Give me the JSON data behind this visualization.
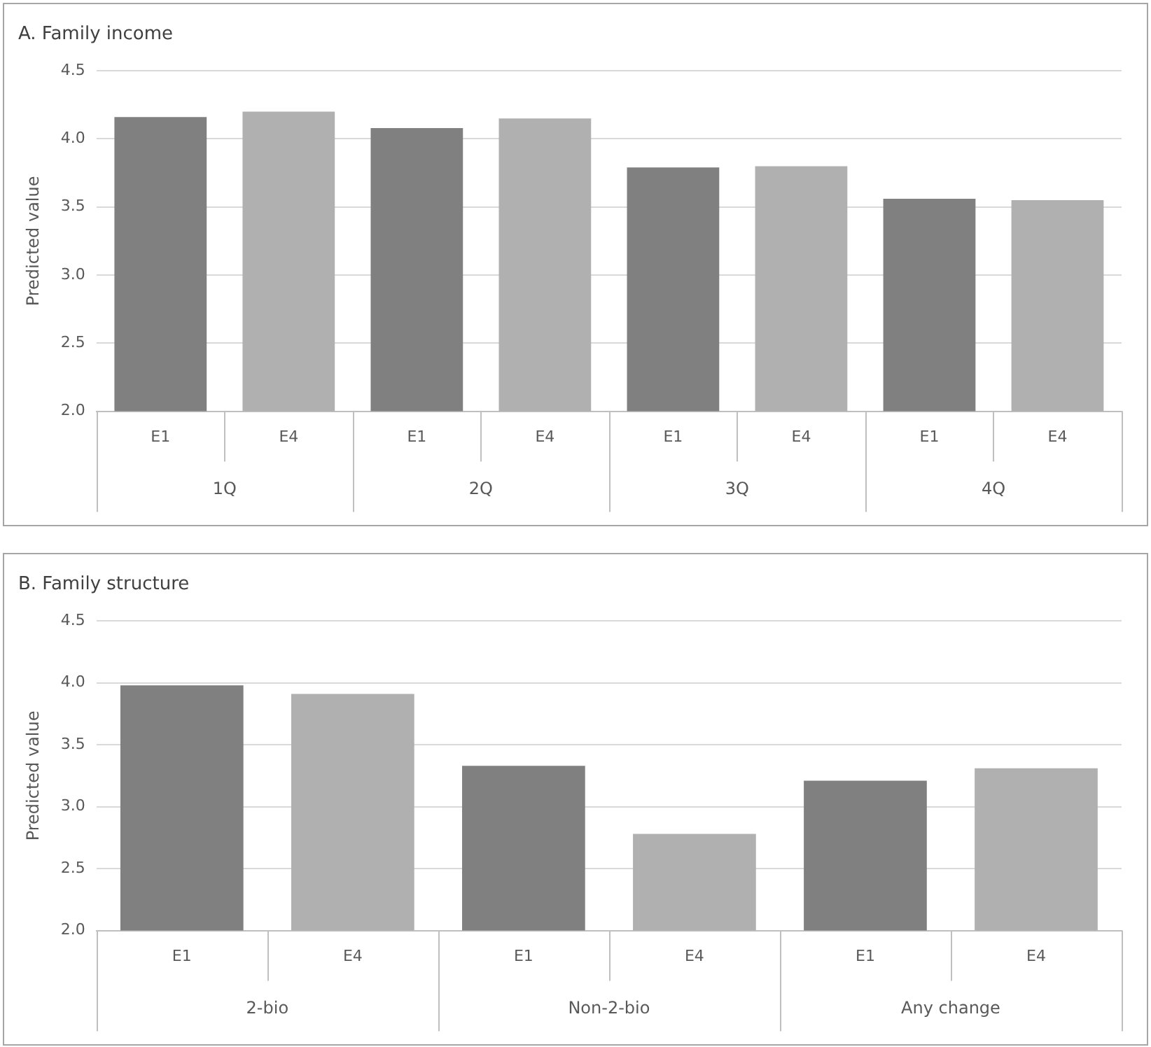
{
  "chart_data": [
    {
      "type": "bar",
      "title": "A. Family income",
      "ylabel": "Predicted value",
      "categories": [
        "E1",
        "E4",
        "E1",
        "E4",
        "E1",
        "E4",
        "E1",
        "E4"
      ],
      "values": [
        4.16,
        4.2,
        4.08,
        4.15,
        3.79,
        3.8,
        3.56,
        3.55
      ],
      "colors": [
        "#808080",
        "#b0b0b0",
        "#808080",
        "#b0b0b0",
        "#808080",
        "#b0b0b0",
        "#808080",
        "#b0b0b0"
      ],
      "ylim": [
        2,
        4.5
      ],
      "yticks": [
        {
          "value": 2,
          "label": "2.0"
        },
        {
          "value": 2.5,
          "label": "2.5"
        },
        {
          "value": 3,
          "label": "3.0"
        },
        {
          "value": 3.5,
          "label": "3.5"
        },
        {
          "value": 4,
          "label": "4.0"
        },
        {
          "value": 4.5,
          "label": "4.5"
        }
      ],
      "grid": "y",
      "legend": false,
      "annotations": [
        "1Q",
        "2Q",
        "3Q",
        "4Q"
      ]
    },
    {
      "type": "bar",
      "title": "B. Family structure",
      "ylabel": "Predicted value",
      "categories": [
        "E1",
        "E4",
        "E1",
        "E4",
        "E1",
        "E4"
      ],
      "values": [
        3.98,
        3.91,
        3.33,
        2.78,
        3.21,
        3.31
      ],
      "colors": [
        "#808080",
        "#b0b0b0",
        "#808080",
        "#b0b0b0",
        "#808080",
        "#b0b0b0"
      ],
      "ylim": [
        2,
        4.5
      ],
      "yticks": [
        {
          "value": 2,
          "label": "2.0"
        },
        {
          "value": 2.5,
          "label": "2.5"
        },
        {
          "value": 3,
          "label": "3.0"
        },
        {
          "value": 3.5,
          "label": "3.5"
        },
        {
          "value": 4,
          "label": "4.0"
        },
        {
          "value": 4.5,
          "label": "4.5"
        }
      ],
      "grid": "y",
      "legend": false,
      "annotations": [
        "2-bio",
        "Non-2-bio",
        "Any change"
      ]
    }
  ]
}
